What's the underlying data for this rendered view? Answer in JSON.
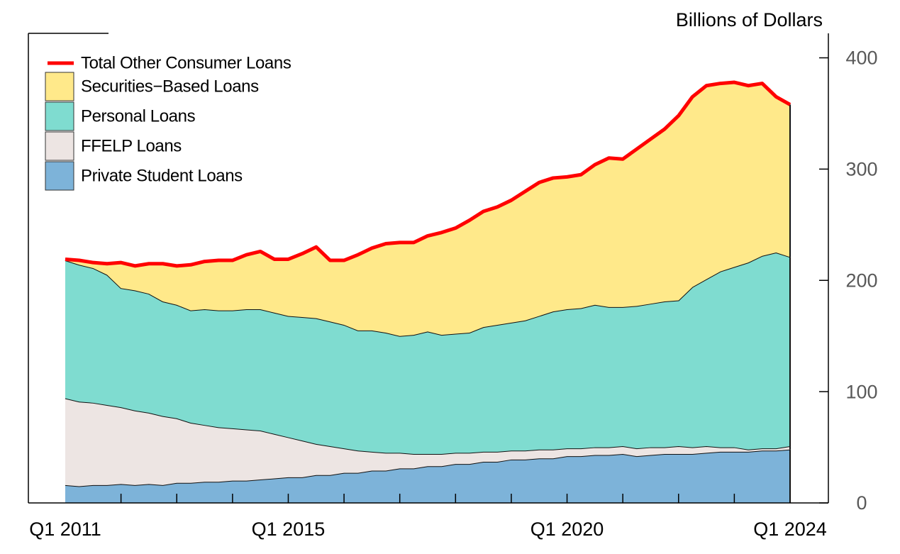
{
  "chart_data": {
    "type": "area",
    "y_axis_label": "Billions of Dollars",
    "categories": [
      "Q1 2011",
      null,
      null,
      null,
      null,
      null,
      null,
      null,
      null,
      null,
      null,
      null,
      null,
      null,
      null,
      null,
      "Q1 2015",
      null,
      null,
      null,
      null,
      null,
      null,
      null,
      null,
      null,
      null,
      null,
      null,
      null,
      null,
      null,
      null,
      null,
      null,
      null,
      "Q1 2020",
      null,
      null,
      null,
      null,
      null,
      null,
      null,
      null,
      null,
      null,
      null,
      null,
      null,
      null,
      null,
      "Q1 2024"
    ],
    "ylim": [
      0,
      422
    ],
    "yticks": [
      0,
      100,
      200,
      300,
      400
    ],
    "y_axis_side": "right",
    "legend": "top-left",
    "series": [
      {
        "name": "Private Student Loans",
        "color": "#7db3d9",
        "values": [
          16,
          15,
          16,
          16,
          17,
          16,
          17,
          16,
          18,
          18,
          19,
          19,
          20,
          20,
          21,
          22,
          23,
          23,
          25,
          25,
          27,
          27,
          29,
          29,
          31,
          31,
          33,
          33,
          35,
          35,
          37,
          37,
          39,
          39,
          40,
          40,
          42,
          42,
          43,
          43,
          44,
          42,
          43,
          44,
          44,
          44,
          45,
          46,
          46,
          46,
          47,
          47,
          48
        ]
      },
      {
        "name": "FFELP Loans",
        "color": "#ede5e3",
        "values": [
          78,
          76,
          74,
          72,
          69,
          67,
          64,
          62,
          58,
          54,
          51,
          49,
          47,
          46,
          44,
          40,
          36,
          33,
          28,
          26,
          22,
          20,
          17,
          16,
          14,
          13,
          11,
          11,
          10,
          10,
          9,
          9,
          8,
          8,
          8,
          8,
          7,
          7,
          7,
          7,
          7,
          7,
          7,
          6,
          7,
          6,
          6,
          4,
          4,
          2,
          2,
          2,
          3
        ]
      },
      {
        "name": "Personal Loans",
        "color": "#7fdcd0",
        "values": [
          124,
          123,
          121,
          117,
          107,
          108,
          107,
          103,
          102,
          101,
          104,
          105,
          106,
          108,
          109,
          109,
          109,
          111,
          113,
          112,
          111,
          108,
          109,
          108,
          105,
          107,
          110,
          107,
          107,
          108,
          112,
          114,
          115,
          117,
          120,
          124,
          125,
          126,
          128,
          126,
          125,
          128,
          129,
          131,
          131,
          144,
          150,
          158,
          162,
          168,
          173,
          176,
          170
        ]
      },
      {
        "name": "Securities−Based Loans",
        "color": "#ffe98a",
        "values": [
          1,
          4,
          5,
          10,
          23,
          22,
          27,
          34,
          35,
          41,
          43,
          45,
          45,
          49,
          52,
          48,
          51,
          57,
          64,
          55,
          58,
          68,
          74,
          80,
          84,
          83,
          86,
          92,
          95,
          101,
          104,
          106,
          110,
          116,
          120,
          120,
          119,
          120,
          126,
          134,
          133,
          141,
          148,
          155,
          166,
          171,
          174,
          169,
          166,
          159,
          155,
          140,
          137
        ]
      },
      {
        "name": "Total Other Consumer Loans",
        "color": "#ff0000",
        "type": "line",
        "values": [
          219,
          218,
          216,
          215,
          216,
          213,
          215,
          215,
          213,
          214,
          217,
          218,
          218,
          223,
          226,
          219,
          219,
          224,
          230,
          218,
          218,
          223,
          229,
          233,
          234,
          234,
          240,
          243,
          247,
          254,
          262,
          266,
          272,
          280,
          288,
          292,
          293,
          295,
          304,
          310,
          309,
          318,
          327,
          336,
          348,
          365,
          375,
          377,
          378,
          375,
          377,
          365,
          358
        ]
      }
    ]
  }
}
